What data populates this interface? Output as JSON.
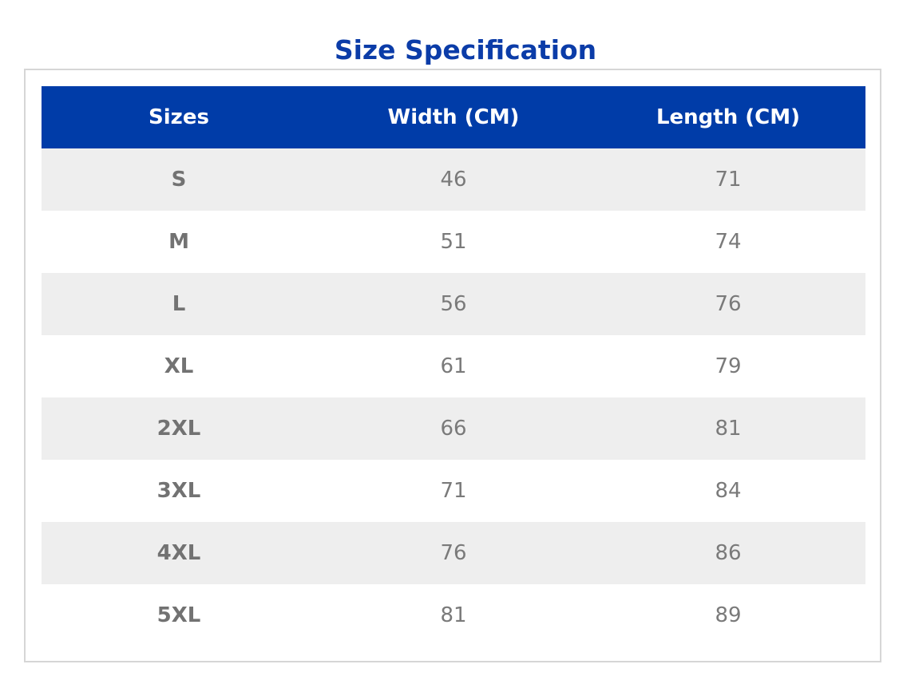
{
  "title": "Size Specification",
  "table": {
    "headers": [
      "Sizes",
      "Width (CM)",
      "Length (CM)"
    ],
    "rows": [
      {
        "size": "S",
        "width": "46",
        "length": "71"
      },
      {
        "size": "M",
        "width": "51",
        "length": "74"
      },
      {
        "size": "L",
        "width": "56",
        "length": "76"
      },
      {
        "size": "XL",
        "width": "61",
        "length": "79"
      },
      {
        "size": "2XL",
        "width": "66",
        "length": "81"
      },
      {
        "size": "3XL",
        "width": "71",
        "length": "84"
      },
      {
        "size": "4XL",
        "width": "76",
        "length": "86"
      },
      {
        "size": "5XL",
        "width": "81",
        "length": "89"
      }
    ]
  },
  "colors": {
    "title": "#0b3ca8",
    "header_background": "#003ca8",
    "header_text": "#ffffff",
    "stripe_row": "#eeeeee",
    "cell_text": "#7a7a7a",
    "frame_border": "#d6d6d6"
  }
}
